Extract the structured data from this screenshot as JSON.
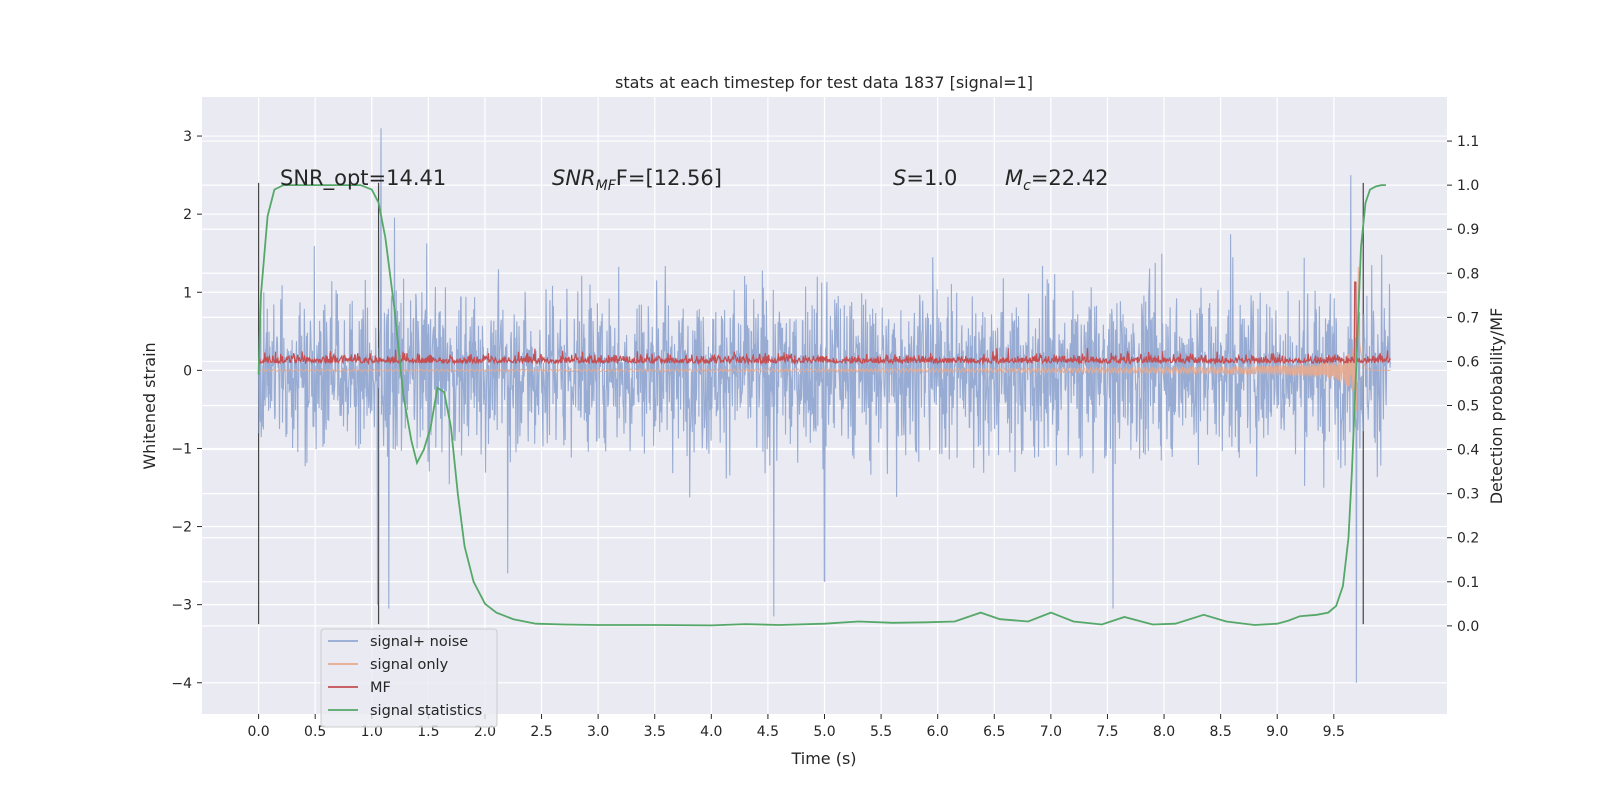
{
  "chart_data": {
    "type": "line",
    "title": "stats at each timestep for test data 1837 [signal=1]",
    "xlabel": "Time (s)",
    "ylabel": "Whitened strain",
    "ylabel_right": "Detection probability/MF",
    "xlim": [
      -0.5,
      10.5
    ],
    "ylim": [
      -4.4,
      3.5
    ],
    "ylim_right": [
      -0.2,
      1.2
    ],
    "xticks": [
      "0.0",
      "0.5",
      "1.0",
      "1.5",
      "2.0",
      "2.5",
      "3.0",
      "3.5",
      "4.0",
      "4.5",
      "5.0",
      "5.5",
      "6.0",
      "6.5",
      "7.0",
      "7.5",
      "8.0",
      "8.5",
      "9.0",
      "9.5"
    ],
    "yticks": [
      "3",
      "2",
      "1",
      "0",
      "−1",
      "−2",
      "−3",
      "−4"
    ],
    "yticks_right": [
      "1.1",
      "1.0",
      "0.9",
      "0.8",
      "0.7",
      "0.6",
      "0.5",
      "0.4",
      "0.3",
      "0.2",
      "0.1",
      "0.0"
    ],
    "grid": true,
    "legend_position": "lower-left",
    "annotations": {
      "snr_opt": "SNR_opt=14.41",
      "snr_mf_prefix": "SNR",
      "snr_mf_sub": "MF",
      "snr_mf_suffix": "F=[12.56]",
      "s_prefix": "S",
      "s_suffix": "=1.0",
      "mc_prefix": "M",
      "mc_sub": "c",
      "mc_suffix": "=22.42"
    },
    "vertical_markers_x": [
      0.0,
      1.06,
      9.76
    ],
    "series": [
      {
        "name": "signal+ noise",
        "color": "#92a8d1",
        "axis": "left",
        "style": "noise",
        "x_range": [
          0.0,
          10.0
        ],
        "approx_band": [
          -1.6,
          1.3
        ],
        "spikes": [
          [
            1.08,
            3.1
          ],
          [
            1.05,
            -3.0
          ],
          [
            1.15,
            -3.05
          ],
          [
            4.55,
            -3.15
          ],
          [
            9.7,
            -4.0
          ],
          [
            9.65,
            2.5
          ],
          [
            7.55,
            -3.05
          ],
          [
            5.0,
            -2.7
          ],
          [
            2.2,
            -2.6
          ]
        ]
      },
      {
        "name": "signal only",
        "color": "#e8aa8e",
        "axis": "left",
        "style": "chirp",
        "x_range": [
          0.0,
          10.0
        ],
        "merger_time": 9.72,
        "peak_amplitude": 2.6
      },
      {
        "name": "MF",
        "color": "#c44e52",
        "axis": "right",
        "style": "noise_small",
        "x_range": [
          0.0,
          10.0
        ],
        "baseline": 0.6,
        "spike": [
          9.69,
          0.78
        ]
      },
      {
        "name": "signal statistics",
        "color": "#55a868",
        "axis": "right",
        "style": "line",
        "x": [
          0.0,
          0.02,
          0.08,
          0.14,
          0.22,
          0.35,
          0.6,
          0.9,
          1.0,
          1.06,
          1.12,
          1.2,
          1.28,
          1.35,
          1.4,
          1.46,
          1.52,
          1.58,
          1.64,
          1.7,
          1.76,
          1.82,
          1.9,
          2.0,
          2.1,
          2.25,
          2.45,
          2.7,
          3.0,
          3.5,
          4.0,
          4.3,
          4.6,
          5.0,
          5.3,
          5.6,
          5.9,
          6.15,
          6.38,
          6.55,
          6.8,
          7.0,
          7.2,
          7.45,
          7.65,
          7.9,
          8.1,
          8.35,
          8.55,
          8.8,
          9.0,
          9.1,
          9.2,
          9.35,
          9.45,
          9.52,
          9.58,
          9.63,
          9.66,
          9.7,
          9.74,
          9.78,
          9.82,
          9.87,
          9.92,
          9.96
        ],
        "y": [
          0.57,
          0.75,
          0.93,
          0.99,
          1.0,
          1.0,
          1.0,
          1.0,
          0.99,
          0.96,
          0.88,
          0.72,
          0.52,
          0.42,
          0.37,
          0.4,
          0.45,
          0.54,
          0.53,
          0.45,
          0.3,
          0.18,
          0.1,
          0.05,
          0.03,
          0.015,
          0.005,
          0.003,
          0.002,
          0.002,
          0.001,
          0.004,
          0.002,
          0.005,
          0.01,
          0.007,
          0.008,
          0.01,
          0.03,
          0.015,
          0.01,
          0.03,
          0.01,
          0.003,
          0.02,
          0.003,
          0.005,
          0.025,
          0.01,
          0.002,
          0.005,
          0.012,
          0.022,
          0.025,
          0.03,
          0.045,
          0.09,
          0.2,
          0.35,
          0.6,
          0.86,
          0.96,
          0.99,
          0.997,
          1.0,
          1.0
        ]
      }
    ]
  }
}
